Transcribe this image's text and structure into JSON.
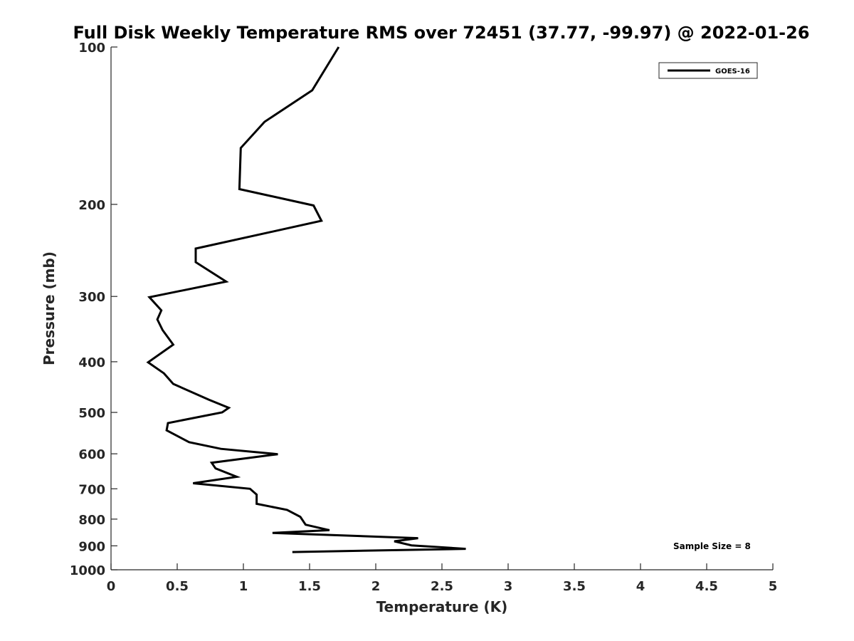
{
  "chart_data": {
    "type": "line",
    "title": "Full Disk Weekly Temperature RMS over 72451 (37.77, -99.97) @ 2022-01-26",
    "xlabel": "Temperature (K)",
    "ylabel": "Pressure (mb)",
    "xlim": [
      0,
      5
    ],
    "ylim": [
      100,
      1000
    ],
    "y_scale": "log",
    "y_reversed": true,
    "x_ticks": [
      "0",
      "0.5",
      "1",
      "1.5",
      "2",
      "2.5",
      "3",
      "3.5",
      "4",
      "4.5",
      "5"
    ],
    "y_ticks": [
      "100",
      "200",
      "300",
      "400",
      "500",
      "600",
      "700",
      "800",
      "900",
      "1000"
    ],
    "grid": false,
    "legend_position": "top-right",
    "series": [
      {
        "name": "GOES-16",
        "color": "#000000",
        "points": [
          [
            1.72,
            100
          ],
          [
            1.52,
            121
          ],
          [
            1.16,
            139
          ],
          [
            0.98,
            156
          ],
          [
            0.97,
            187
          ],
          [
            1.53,
            201
          ],
          [
            1.59,
            215
          ],
          [
            0.64,
            243
          ],
          [
            0.64,
            258
          ],
          [
            0.87,
            281
          ],
          [
            0.29,
            301
          ],
          [
            0.38,
            319
          ],
          [
            0.35,
            332
          ],
          [
            0.39,
            348
          ],
          [
            0.47,
            371
          ],
          [
            0.28,
            401
          ],
          [
            0.4,
            421
          ],
          [
            0.47,
            441
          ],
          [
            0.74,
            473
          ],
          [
            0.89,
            490
          ],
          [
            0.84,
            500
          ],
          [
            0.43,
            524
          ],
          [
            0.42,
            541
          ],
          [
            0.59,
            570
          ],
          [
            0.83,
            587
          ],
          [
            1.26,
            601
          ],
          [
            0.76,
            624
          ],
          [
            0.79,
            640
          ],
          [
            0.95,
            664
          ],
          [
            0.62,
            683
          ],
          [
            1.05,
            700
          ],
          [
            1.1,
            718
          ],
          [
            1.1,
            748
          ],
          [
            1.33,
            768
          ],
          [
            1.43,
            792
          ],
          [
            1.47,
            820
          ],
          [
            1.65,
            840
          ],
          [
            1.22,
            850
          ],
          [
            2.32,
            870
          ],
          [
            2.14,
            882
          ],
          [
            2.27,
            898
          ],
          [
            2.68,
            912
          ],
          [
            1.37,
            925
          ]
        ]
      }
    ],
    "annotation": "Sample Size = 8"
  }
}
